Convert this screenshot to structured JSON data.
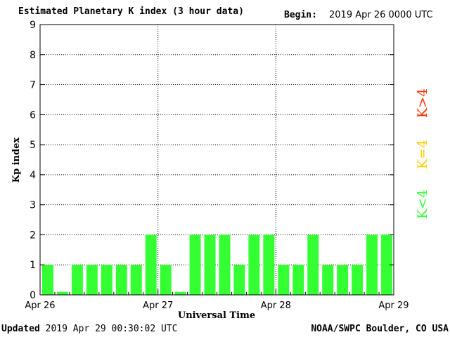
{
  "header": {
    "title": "Estimated Planetary K index (3 hour data)",
    "begin_label": "Begin:",
    "begin_value": "2019 Apr 26 0000 UTC"
  },
  "footer": {
    "updated_label": "Updated",
    "updated_value": "2019 Apr 29 00:30:02 UTC",
    "credit": "NOAA/SWPC Boulder, CO USA"
  },
  "legend": {
    "low": "K<4",
    "mid": "K=4",
    "high": "K>4"
  },
  "colors": {
    "low": "#33ff33",
    "mid": "#ffcc00",
    "high": "#ff3300",
    "axis": "#000000"
  },
  "chart_data": {
    "type": "bar",
    "title": "Estimated Planetary K index (3 hour data)",
    "xlabel": "Universal Time",
    "ylabel": "Kp index",
    "ylim": [
      0,
      9
    ],
    "yticks": [
      0,
      1,
      2,
      3,
      4,
      5,
      6,
      7,
      8,
      9
    ],
    "x_tick_labels": [
      "Apr 26",
      "Apr 27",
      "Apr 28",
      "Apr 29"
    ],
    "interval_hours": 3,
    "grid": true,
    "values": [
      1,
      0.1,
      1,
      1,
      1,
      1,
      1,
      2,
      1,
      0.1,
      2,
      2,
      2,
      1,
      2,
      2,
      1,
      1,
      2,
      1,
      1,
      1,
      2,
      2
    ]
  }
}
